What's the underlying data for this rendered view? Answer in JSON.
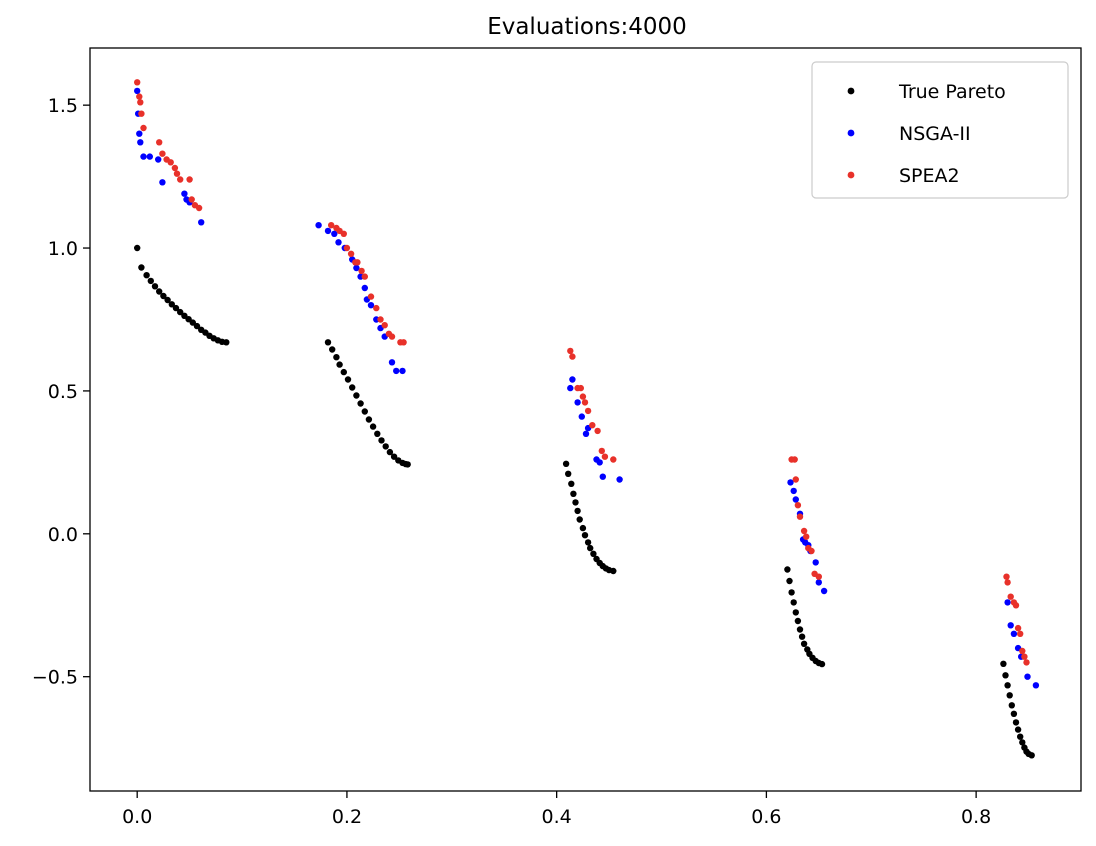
{
  "chart_data": {
    "type": "scatter",
    "title": "Evaluations:4000",
    "xlabel": "",
    "ylabel": "",
    "xlim": [
      -0.045,
      0.9
    ],
    "ylim": [
      -0.9,
      1.7
    ],
    "xticks": [
      0.0,
      0.2,
      0.4,
      0.6,
      0.8
    ],
    "xtick_labels": [
      "0.0",
      "0.2",
      "0.4",
      "0.6",
      "0.8"
    ],
    "yticks": [
      -0.5,
      0.0,
      0.5,
      1.0,
      1.5
    ],
    "ytick_labels": [
      "−0.5",
      "0.0",
      "0.5",
      "1.0",
      "1.5"
    ],
    "grid": false,
    "legend_position": "top-right",
    "series": [
      {
        "name": "True Pareto",
        "color": "#000000",
        "points": [
          [
            0.0,
            1.0
          ],
          [
            0.004,
            0.932
          ],
          [
            0.009,
            0.905
          ],
          [
            0.013,
            0.885
          ],
          [
            0.017,
            0.866
          ],
          [
            0.021,
            0.848
          ],
          [
            0.025,
            0.832
          ],
          [
            0.029,
            0.818
          ],
          [
            0.033,
            0.803
          ],
          [
            0.037,
            0.79
          ],
          [
            0.041,
            0.776
          ],
          [
            0.045,
            0.763
          ],
          [
            0.049,
            0.751
          ],
          [
            0.053,
            0.739
          ],
          [
            0.057,
            0.727
          ],
          [
            0.061,
            0.714
          ],
          [
            0.065,
            0.704
          ],
          [
            0.069,
            0.693
          ],
          [
            0.073,
            0.684
          ],
          [
            0.077,
            0.677
          ],
          [
            0.081,
            0.672
          ],
          [
            0.085,
            0.67
          ],
          [
            0.182,
            0.67
          ],
          [
            0.186,
            0.645
          ],
          [
            0.19,
            0.618
          ],
          [
            0.193,
            0.592
          ],
          [
            0.197,
            0.566
          ],
          [
            0.201,
            0.54
          ],
          [
            0.205,
            0.512
          ],
          [
            0.209,
            0.484
          ],
          [
            0.213,
            0.456
          ],
          [
            0.217,
            0.428
          ],
          [
            0.221,
            0.4
          ],
          [
            0.225,
            0.375
          ],
          [
            0.229,
            0.35
          ],
          [
            0.233,
            0.327
          ],
          [
            0.237,
            0.306
          ],
          [
            0.241,
            0.286
          ],
          [
            0.245,
            0.27
          ],
          [
            0.249,
            0.257
          ],
          [
            0.253,
            0.248
          ],
          [
            0.256,
            0.244
          ],
          [
            0.258,
            0.243
          ],
          [
            0.409,
            0.245
          ],
          [
            0.411,
            0.21
          ],
          [
            0.414,
            0.175
          ],
          [
            0.416,
            0.14
          ],
          [
            0.418,
            0.11
          ],
          [
            0.42,
            0.08
          ],
          [
            0.422,
            0.05
          ],
          [
            0.425,
            0.02
          ],
          [
            0.427,
            -0.005
          ],
          [
            0.43,
            -0.03
          ],
          [
            0.432,
            -0.05
          ],
          [
            0.435,
            -0.07
          ],
          [
            0.438,
            -0.088
          ],
          [
            0.441,
            -0.102
          ],
          [
            0.444,
            -0.113
          ],
          [
            0.447,
            -0.121
          ],
          [
            0.45,
            -0.127
          ],
          [
            0.454,
            -0.13
          ],
          [
            0.62,
            -0.125
          ],
          [
            0.622,
            -0.165
          ],
          [
            0.624,
            -0.205
          ],
          [
            0.626,
            -0.24
          ],
          [
            0.628,
            -0.275
          ],
          [
            0.63,
            -0.305
          ],
          [
            0.632,
            -0.335
          ],
          [
            0.634,
            -0.36
          ],
          [
            0.636,
            -0.385
          ],
          [
            0.639,
            -0.405
          ],
          [
            0.641,
            -0.42
          ],
          [
            0.644,
            -0.434
          ],
          [
            0.647,
            -0.445
          ],
          [
            0.65,
            -0.452
          ],
          [
            0.653,
            -0.456
          ],
          [
            0.826,
            -0.455
          ],
          [
            0.828,
            -0.495
          ],
          [
            0.83,
            -0.53
          ],
          [
            0.832,
            -0.565
          ],
          [
            0.834,
            -0.6
          ],
          [
            0.836,
            -0.63
          ],
          [
            0.838,
            -0.66
          ],
          [
            0.84,
            -0.685
          ],
          [
            0.842,
            -0.71
          ],
          [
            0.844,
            -0.73
          ],
          [
            0.846,
            -0.748
          ],
          [
            0.848,
            -0.762
          ],
          [
            0.85,
            -0.77
          ],
          [
            0.853,
            -0.775
          ]
        ]
      },
      {
        "name": "NSGA-II",
        "color": "#0000ff",
        "points": [
          [
            0.0,
            1.55
          ],
          [
            0.001,
            1.47
          ],
          [
            0.002,
            1.4
          ],
          [
            0.003,
            1.37
          ],
          [
            0.006,
            1.32
          ],
          [
            0.012,
            1.32
          ],
          [
            0.02,
            1.31
          ],
          [
            0.024,
            1.23
          ],
          [
            0.045,
            1.19
          ],
          [
            0.047,
            1.17
          ],
          [
            0.05,
            1.16
          ],
          [
            0.061,
            1.09
          ],
          [
            0.173,
            1.08
          ],
          [
            0.182,
            1.06
          ],
          [
            0.188,
            1.05
          ],
          [
            0.192,
            1.02
          ],
          [
            0.198,
            1.0
          ],
          [
            0.205,
            0.96
          ],
          [
            0.209,
            0.93
          ],
          [
            0.213,
            0.9
          ],
          [
            0.217,
            0.86
          ],
          [
            0.219,
            0.82
          ],
          [
            0.223,
            0.8
          ],
          [
            0.228,
            0.75
          ],
          [
            0.232,
            0.72
          ],
          [
            0.236,
            0.69
          ],
          [
            0.243,
            0.6
          ],
          [
            0.247,
            0.57
          ],
          [
            0.253,
            0.57
          ],
          [
            0.413,
            0.51
          ],
          [
            0.415,
            0.54
          ],
          [
            0.42,
            0.46
          ],
          [
            0.424,
            0.41
          ],
          [
            0.428,
            0.35
          ],
          [
            0.43,
            0.37
          ],
          [
            0.438,
            0.26
          ],
          [
            0.441,
            0.25
          ],
          [
            0.444,
            0.2
          ],
          [
            0.46,
            0.19
          ],
          [
            0.623,
            0.18
          ],
          [
            0.626,
            0.15
          ],
          [
            0.628,
            0.12
          ],
          [
            0.632,
            0.07
          ],
          [
            0.635,
            -0.02
          ],
          [
            0.637,
            -0.03
          ],
          [
            0.64,
            -0.04
          ],
          [
            0.642,
            -0.06
          ],
          [
            0.647,
            -0.1
          ],
          [
            0.65,
            -0.17
          ],
          [
            0.655,
            -0.2
          ],
          [
            0.83,
            -0.24
          ],
          [
            0.833,
            -0.32
          ],
          [
            0.836,
            -0.35
          ],
          [
            0.84,
            -0.4
          ],
          [
            0.843,
            -0.43
          ],
          [
            0.849,
            -0.5
          ],
          [
            0.857,
            -0.53
          ]
        ]
      },
      {
        "name": "SPEA2",
        "color": "#e8312a",
        "points": [
          [
            0.0,
            1.58
          ],
          [
            0.002,
            1.53
          ],
          [
            0.003,
            1.51
          ],
          [
            0.004,
            1.47
          ],
          [
            0.006,
            1.42
          ],
          [
            0.021,
            1.37
          ],
          [
            0.024,
            1.33
          ],
          [
            0.028,
            1.31
          ],
          [
            0.032,
            1.3
          ],
          [
            0.036,
            1.28
          ],
          [
            0.038,
            1.26
          ],
          [
            0.041,
            1.24
          ],
          [
            0.05,
            1.24
          ],
          [
            0.052,
            1.17
          ],
          [
            0.055,
            1.15
          ],
          [
            0.059,
            1.14
          ],
          [
            0.185,
            1.08
          ],
          [
            0.19,
            1.07
          ],
          [
            0.193,
            1.06
          ],
          [
            0.197,
            1.05
          ],
          [
            0.2,
            1.0
          ],
          [
            0.204,
            0.98
          ],
          [
            0.208,
            0.95
          ],
          [
            0.21,
            0.95
          ],
          [
            0.214,
            0.92
          ],
          [
            0.217,
            0.9
          ],
          [
            0.223,
            0.83
          ],
          [
            0.228,
            0.79
          ],
          [
            0.232,
            0.75
          ],
          [
            0.236,
            0.73
          ],
          [
            0.24,
            0.7
          ],
          [
            0.243,
            0.69
          ],
          [
            0.251,
            0.67
          ],
          [
            0.254,
            0.67
          ],
          [
            0.413,
            0.64
          ],
          [
            0.415,
            0.62
          ],
          [
            0.42,
            0.51
          ],
          [
            0.423,
            0.51
          ],
          [
            0.425,
            0.48
          ],
          [
            0.427,
            0.46
          ],
          [
            0.43,
            0.43
          ],
          [
            0.434,
            0.38
          ],
          [
            0.439,
            0.36
          ],
          [
            0.443,
            0.29
          ],
          [
            0.446,
            0.27
          ],
          [
            0.454,
            0.26
          ],
          [
            0.624,
            0.26
          ],
          [
            0.627,
            0.26
          ],
          [
            0.628,
            0.19
          ],
          [
            0.63,
            0.1
          ],
          [
            0.632,
            0.06
          ],
          [
            0.636,
            0.01
          ],
          [
            0.638,
            -0.01
          ],
          [
            0.64,
            -0.05
          ],
          [
            0.643,
            -0.06
          ],
          [
            0.646,
            -0.14
          ],
          [
            0.65,
            -0.15
          ],
          [
            0.829,
            -0.15
          ],
          [
            0.83,
            -0.17
          ],
          [
            0.833,
            -0.22
          ],
          [
            0.836,
            -0.24
          ],
          [
            0.838,
            -0.25
          ],
          [
            0.84,
            -0.33
          ],
          [
            0.842,
            -0.35
          ],
          [
            0.844,
            -0.41
          ],
          [
            0.846,
            -0.43
          ],
          [
            0.848,
            -0.45
          ]
        ]
      }
    ]
  }
}
